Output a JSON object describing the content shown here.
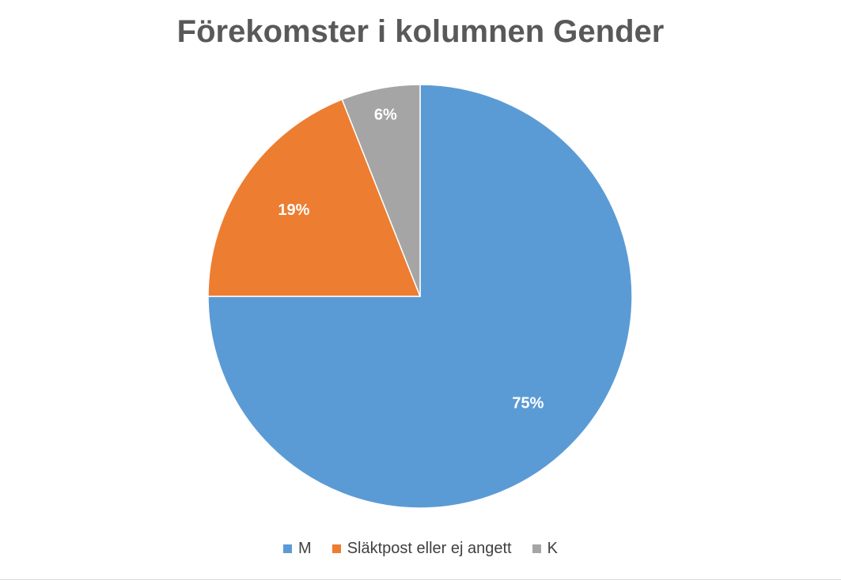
{
  "chart_data": {
    "type": "pie",
    "title": "Förekomster i kolumnen Gender",
    "categories": [
      "M",
      "Släktpost eller ej angett",
      "K"
    ],
    "values": [
      75,
      19,
      6
    ],
    "labels": [
      "75%",
      "19%",
      "6%"
    ],
    "colors": [
      "#5B9BD5",
      "#ED7D31",
      "#A5A5A5"
    ],
    "legend_position": "bottom"
  }
}
